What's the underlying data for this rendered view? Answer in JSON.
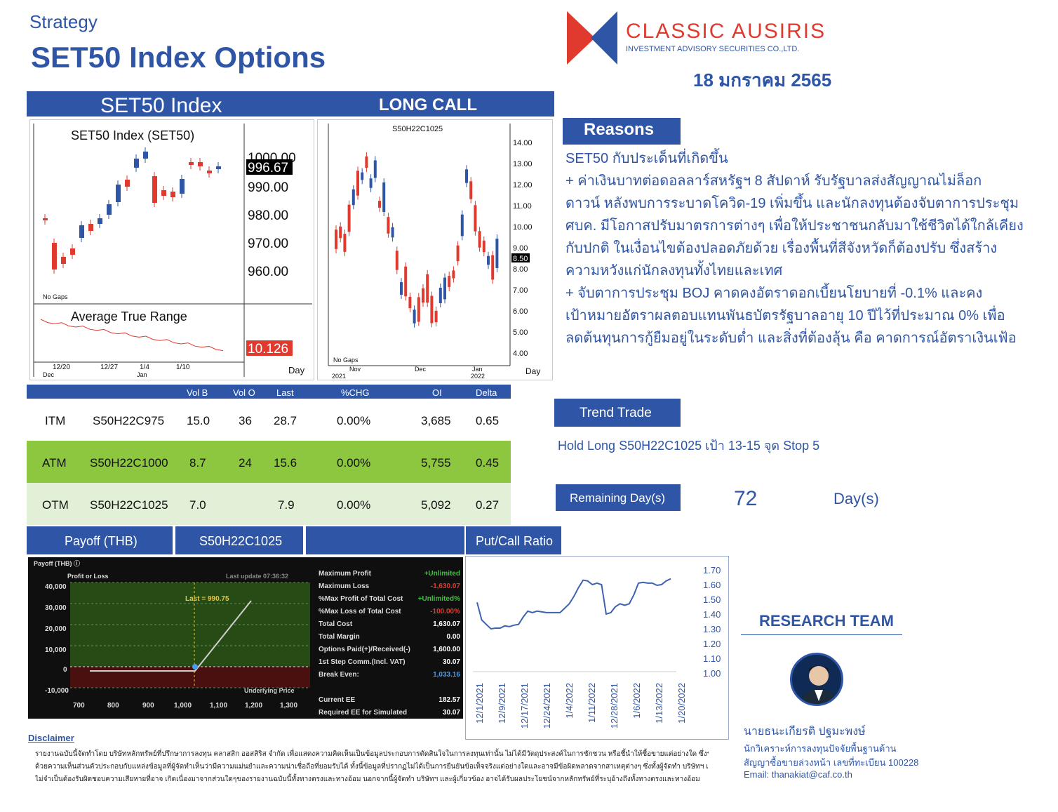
{
  "header": {
    "category": "Strategy",
    "title": "SET50 Index Options",
    "logo_name": "CLASSIC AUSIRIS",
    "logo_sub": "INVESTMENT ADVISORY SECURITIES CO.,LTD.",
    "date": "18 มกราคม 2565"
  },
  "colors": {
    "brand_blue": "#2f56a6",
    "brand_red": "#e03a2f",
    "atm_green": "#8dc63f",
    "otm_green": "#e3f0d8"
  },
  "set50_panel": {
    "bar_label": "SET50 Index",
    "chart_title": "SET50  Index  (SET50)",
    "price_labels": [
      "1000.00",
      "990.00",
      "980.00",
      "970.00",
      "960.00"
    ],
    "last_price": "996.67",
    "no_gaps": "No Gaps",
    "atr_title": "Average  True  Range",
    "atr_value": "10.126",
    "day_label": "Day",
    "dates": [
      "12/20",
      "12/27",
      "1/4",
      "1/10"
    ],
    "months": [
      "Dec",
      "Jan"
    ]
  },
  "call_panel": {
    "bar_label": "LONG CALL",
    "chart_title": "S50H22C1025",
    "price_labels": [
      "14.00",
      "13.00",
      "12.00",
      "11.00",
      "10.00",
      "9.00",
      "8.00",
      "7.00",
      "6.00",
      "5.00",
      "4.00"
    ],
    "last_price": "8.50",
    "no_gaps": "No Gaps",
    "day_label": "Day",
    "months": [
      "Nov",
      "Dec",
      "Jan"
    ],
    "years": [
      "2021",
      "2022"
    ]
  },
  "options_table": {
    "headers": [
      "Vol B",
      "Vol O",
      "Last",
      "%CHG",
      "OI",
      "Delta"
    ],
    "rows": [
      {
        "type": "ITM",
        "series": "S50H22C975",
        "vol_b": "15.0",
        "vol_o": "36",
        "last": "28.7",
        "chg": "0.00%",
        "oi": "3,685",
        "delta": "0.65"
      },
      {
        "type": "ATM",
        "series": "S50H22C1000",
        "vol_b": "8.7",
        "vol_o": "24",
        "last": "15.6",
        "chg": "0.00%",
        "oi": "5,755",
        "delta": "0.45"
      },
      {
        "type": "OTM",
        "series": "S50H22C1025",
        "vol_b": "7.0",
        "vol_o": "",
        "last": "7.9",
        "chg": "0.00%",
        "oi": "5,092",
        "delta": "0.27"
      }
    ]
  },
  "reasons": {
    "title": "Reasons",
    "lines": [
      "SET50 กับประเด็นที่เกิดขึ้น",
      "+ ค่าเงินบาทต่อดอลลาร์สหรัฐฯ 8 สัปดาห์  รับรัฐบาลส่งสัญญาณไม่ล็อก",
      "ดาวน์ หลังพบการระบาดโควิด-19 เพิ่มขึ้น และนักลงทุนต้องจับตาการประชุม",
      "ศบค. มีโอกาสปรับมาตรการต่างๆ เพื่อให้ประชาชนกลับมาใช้ชีวิตได้ใกล้เคียง",
      "กับปกติ ในเงื่อนไขต้องปลอดภัยด้วย เรื่องพื้นที่สีจังหวัดก็ต้องปรับ ซึ่งสร้าง",
      "ความหวังแก่นักลงทุนทั้งไทยและเทศ",
      "+ จับตาการประชุม BOJ คาดคงอัตราดอกเบี้ยนโยบายที่ -0.1% และคง",
      "เป้าหมายอัตราผลตอบแทนพันธบัตรรัฐบาลอายุ 10 ปีไว้ที่ประมาณ 0% เพื่อ",
      "ลดต้นทุนการกู้ยืมอยู่ในระดับต่ำ  และสิ่งที่ต้องลุ้น คือ คาดการณ์อัตราเงินเฟ้อ"
    ]
  },
  "trend": {
    "title": "Trend Trade",
    "text": "Hold Long S50H22C1025 เป้า 13-15 จุด Stop 5"
  },
  "remaining": {
    "label": "Remaining Day(s)",
    "value": "72",
    "unit": "Day(s)"
  },
  "payoff_bars": {
    "label1": "Payoff (THB)",
    "label2": "S50H22C1025",
    "label3": "",
    "label4": "Put/Call Ratio"
  },
  "payoff_panel": {
    "header": "Payoff (THB) ⓘ",
    "axis_title": "Profit or Loss",
    "last_update": "Last update 07:36:32",
    "last_label": "Last = 990.75",
    "y_labels": [
      "40,000",
      "30,000",
      "20,000",
      "10,000",
      "0",
      "-10,000"
    ],
    "x_labels": [
      "700",
      "800",
      "900",
      "1,000",
      "1,100",
      "1,200",
      "1,300"
    ],
    "x_title": "Underlying Price",
    "stats": [
      {
        "label": "Maximum Profit",
        "value": "+Unlimited",
        "color": "#3fbf3f"
      },
      {
        "label": "Maximum Loss",
        "value": "-1,630.07",
        "color": "#e03a2f"
      },
      {
        "label": "%Max Profit of Total Cost",
        "value": "+Unlimited%",
        "color": "#3fbf3f"
      },
      {
        "label": "%Max Loss of Total Cost",
        "value": "-100.00%",
        "color": "#e03a2f"
      },
      {
        "label": "Total Cost",
        "value": "1,630.07",
        "color": "#ffffff"
      },
      {
        "label": "Total Margin",
        "value": "0.00",
        "color": "#ffffff"
      },
      {
        "label": "Options Paid(+)/Received(-)",
        "value": "1,600.00",
        "color": "#ffffff"
      },
      {
        "label": "1st Step Comm.(Incl. VAT)",
        "value": "30.07",
        "color": "#ffffff"
      },
      {
        "label": "Break Even:",
        "value": "1,033.16",
        "color": "#4a9be8"
      }
    ],
    "stats2": [
      {
        "label": "Current EE",
        "value": "182.57",
        "color": "#ffffff"
      },
      {
        "label": "Required EE for Simulated",
        "value": "30.07",
        "color": "#ffffff"
      }
    ]
  },
  "chart_data": {
    "type": "line",
    "title": "",
    "xlabel": "",
    "ylabel": "",
    "ylim": [
      1.0,
      1.7
    ],
    "y_ticks": [
      "1.70",
      "1.60",
      "1.50",
      "1.40",
      "1.30",
      "1.20",
      "1.10",
      "1.00"
    ],
    "x_ticks": [
      "12/1/2021",
      "12/9/2021",
      "12/17/2021",
      "12/24/2021",
      "1/4/2022",
      "1/11/2022",
      "12/28/2021",
      "1/6/2022",
      "1/13/2022",
      "1/20/2022"
    ],
    "series": [
      {
        "values": [
          1.48,
          1.36,
          1.33,
          1.3,
          1.305,
          1.305,
          1.32,
          1.315,
          1.325,
          1.33,
          1.38,
          1.42,
          1.41,
          1.42,
          1.415,
          1.41,
          1.41,
          1.41,
          1.41,
          1.44,
          1.47,
          1.52,
          1.58,
          1.63,
          1.625,
          1.6,
          1.61,
          1.6,
          1.4,
          1.41,
          1.45,
          1.47,
          1.46,
          1.47,
          1.53,
          1.61,
          1.615,
          1.61,
          1.61,
          1.595,
          1.6,
          1.625,
          1.64
        ]
      }
    ]
  },
  "research": {
    "title": "RESEARCH TEAM",
    "name": "นายธนะเกียรติ ปฐมะพงษ์",
    "role": "นักวิเคราะห์การลงทุนปัจจัยพื้นฐานด้าน",
    "license": "สัญญาซื้อขายล่วงหน้า เลขที่ทะเบียน 100228",
    "email": "Email: thanakiat@caf.co.th"
  },
  "disclaimer": {
    "title": "Disclaimer",
    "lines": [
      "รายงานฉบับนี้จัดทำโดย บริษัทหลักทรัพย์ที่ปรึกษาการลงทุน คลาสสิก ออสสิริส จำกัด เพื่อแสดงความคิดเห็นเป็นข้อมูลประกอบการตัดสินใจในการลงทุนเท่านั้น ไม่ได้มีวัตถุประสงค์ในการชักชวน หรือชี้นำให้ซื้อขายแต่อย่างใด ซึ่งรายงานนี้ จัดทำ",
      "ด้วยความเห็นส่วนตัวประกอบกับแหล่งข้อมูลที่ผู้จัดทำเห็นว่ามีความแม่นยำและความน่าเชื่อถือที่ยอมรับได้ ทั้งนี้ข้อมูลที่ปรากฏไม่ได้เป็นการยืนยันข้อเท็จจริงแต่อย่างใดและอาจมีข้อผิดพลาดจากสาเหตุต่างๆ ซึ่งทั้งผู้จัดทำ บริษัทฯ และผู้เกี่ยวข้อง",
      "ไม่จำเป็นต้องรับผิดชอบความเสียหายที่อาจ เกิดเนื่องมาจากส่วนใดๆของรายงานฉบับนี้ทั้งทางตรงและทางอ้อม นอกจากนี้ผู้จัดทำ บริษัทฯ และผู้เกี่ยวข้อง อาจได้รับผลประโยชน์จากหลักทรัพย์ที่ระบุอ้างถึงทั้งทางตรงและทางอ้อม"
    ]
  }
}
